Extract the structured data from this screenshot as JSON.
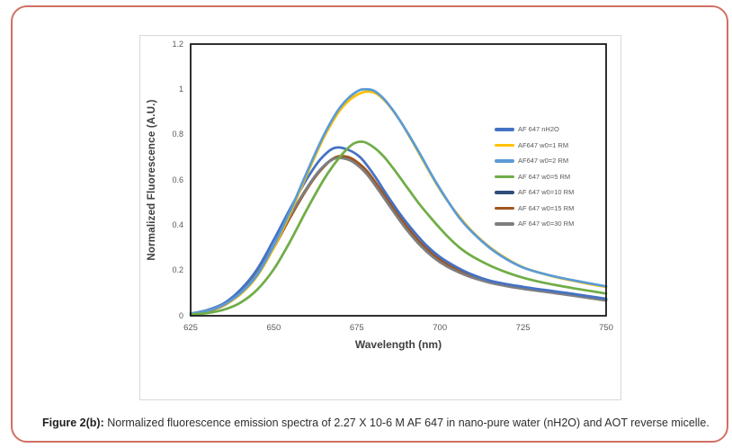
{
  "figure": {
    "caption_label": "Figure 2(b):",
    "caption_text": " Normalized fluorescence emission spectra of 2.27 X 10-6 M AF 647 in nano-pure water (nH2O) and AOT reverse micelle.",
    "border_color": "#cf7164"
  },
  "chart_data": {
    "type": "line",
    "title": "",
    "xlabel": "Wavelength (nm)",
    "ylabel": "Normalized Fluorescence (A.U.)",
    "xlim": [
      625,
      750
    ],
    "ylim": [
      0,
      1.2
    ],
    "x_ticks": [
      625,
      650,
      675,
      700,
      725,
      750
    ],
    "y_ticks": [
      0,
      0.2,
      0.4,
      0.6,
      0.8,
      1,
      1.2
    ],
    "grid": false,
    "legend_position": "inside-right",
    "plot_border_color": "#1a1a1a",
    "draw_order": [
      4,
      5,
      6,
      0,
      1,
      2,
      3
    ],
    "series": [
      {
        "name": "AF 647 nH2O",
        "color": "#4472C4",
        "points": [
          [
            625,
            0.01
          ],
          [
            630,
            0.025
          ],
          [
            635,
            0.055
          ],
          [
            640,
            0.115
          ],
          [
            645,
            0.205
          ],
          [
            650,
            0.335
          ],
          [
            655,
            0.475
          ],
          [
            660,
            0.605
          ],
          [
            664,
            0.69
          ],
          [
            668,
            0.74
          ],
          [
            672,
            0.735
          ],
          [
            676,
            0.7
          ],
          [
            680,
            0.625
          ],
          [
            684,
            0.535
          ],
          [
            688,
            0.45
          ],
          [
            692,
            0.375
          ],
          [
            696,
            0.31
          ],
          [
            700,
            0.26
          ],
          [
            705,
            0.215
          ],
          [
            710,
            0.18
          ],
          [
            715,
            0.155
          ],
          [
            720,
            0.14
          ],
          [
            725,
            0.128
          ],
          [
            730,
            0.117
          ],
          [
            735,
            0.107
          ],
          [
            740,
            0.097
          ],
          [
            745,
            0.086
          ],
          [
            750,
            0.075
          ]
        ]
      },
      {
        "name": "AF647 w0=1 RM",
        "color": "#FFC000",
        "points": [
          [
            625,
            0.01
          ],
          [
            630,
            0.022
          ],
          [
            635,
            0.048
          ],
          [
            640,
            0.095
          ],
          [
            645,
            0.175
          ],
          [
            650,
            0.3
          ],
          [
            655,
            0.455
          ],
          [
            660,
            0.625
          ],
          [
            665,
            0.785
          ],
          [
            669,
            0.888
          ],
          [
            672,
            0.942
          ],
          [
            675,
            0.975
          ],
          [
            678,
            0.99
          ],
          [
            681,
            0.98
          ],
          [
            684,
            0.94
          ],
          [
            688,
            0.862
          ],
          [
            692,
            0.762
          ],
          [
            696,
            0.658
          ],
          [
            700,
            0.558
          ],
          [
            705,
            0.453
          ],
          [
            710,
            0.368
          ],
          [
            715,
            0.303
          ],
          [
            720,
            0.253
          ],
          [
            725,
            0.214
          ],
          [
            730,
            0.19
          ],
          [
            735,
            0.17
          ],
          [
            740,
            0.155
          ],
          [
            745,
            0.14
          ],
          [
            750,
            0.128
          ]
        ]
      },
      {
        "name": "AF647 w0=2 RM",
        "color": "#5B9BD5",
        "points": [
          [
            625,
            0.01
          ],
          [
            630,
            0.022
          ],
          [
            635,
            0.05
          ],
          [
            640,
            0.1
          ],
          [
            645,
            0.18
          ],
          [
            650,
            0.31
          ],
          [
            655,
            0.465
          ],
          [
            660,
            0.635
          ],
          [
            665,
            0.795
          ],
          [
            669,
            0.9
          ],
          [
            672,
            0.955
          ],
          [
            675,
            0.99
          ],
          [
            677,
            1.0
          ],
          [
            680,
            0.995
          ],
          [
            683,
            0.96
          ],
          [
            686,
            0.905
          ],
          [
            690,
            0.815
          ],
          [
            694,
            0.715
          ],
          [
            698,
            0.61
          ],
          [
            702,
            0.515
          ],
          [
            706,
            0.43
          ],
          [
            710,
            0.365
          ],
          [
            715,
            0.3
          ],
          [
            720,
            0.25
          ],
          [
            725,
            0.213
          ],
          [
            730,
            0.19
          ],
          [
            735,
            0.172
          ],
          [
            740,
            0.157
          ],
          [
            745,
            0.143
          ],
          [
            750,
            0.13
          ]
        ]
      },
      {
        "name": "AF 647 w0=5 RM",
        "color": "#70AD47",
        "points": [
          [
            625,
            0.005
          ],
          [
            630,
            0.012
          ],
          [
            635,
            0.027
          ],
          [
            640,
            0.058
          ],
          [
            645,
            0.115
          ],
          [
            650,
            0.205
          ],
          [
            655,
            0.33
          ],
          [
            660,
            0.47
          ],
          [
            665,
            0.6
          ],
          [
            668,
            0.665
          ],
          [
            671,
            0.72
          ],
          [
            674,
            0.76
          ],
          [
            677,
            0.768
          ],
          [
            680,
            0.745
          ],
          [
            683,
            0.705
          ],
          [
            686,
            0.65
          ],
          [
            690,
            0.57
          ],
          [
            694,
            0.49
          ],
          [
            698,
            0.42
          ],
          [
            702,
            0.355
          ],
          [
            706,
            0.3
          ],
          [
            710,
            0.26
          ],
          [
            715,
            0.222
          ],
          [
            720,
            0.192
          ],
          [
            725,
            0.168
          ],
          [
            730,
            0.15
          ],
          [
            735,
            0.135
          ],
          [
            740,
            0.122
          ],
          [
            745,
            0.11
          ],
          [
            750,
            0.098
          ]
        ]
      },
      {
        "name": "AF 647 w0=10 RM",
        "color": "#2E4D7B",
        "points": [
          [
            625,
            0.008
          ],
          [
            630,
            0.021
          ],
          [
            635,
            0.048
          ],
          [
            640,
            0.1
          ],
          [
            645,
            0.185
          ],
          [
            650,
            0.305
          ],
          [
            655,
            0.44
          ],
          [
            660,
            0.565
          ],
          [
            664,
            0.645
          ],
          [
            668,
            0.695
          ],
          [
            671,
            0.7
          ],
          [
            674,
            0.685
          ],
          [
            678,
            0.635
          ],
          [
            682,
            0.555
          ],
          [
            686,
            0.47
          ],
          [
            690,
            0.39
          ],
          [
            694,
            0.32
          ],
          [
            698,
            0.265
          ],
          [
            702,
            0.225
          ],
          [
            706,
            0.195
          ],
          [
            710,
            0.172
          ],
          [
            715,
            0.15
          ],
          [
            720,
            0.135
          ],
          [
            725,
            0.122
          ],
          [
            730,
            0.112
          ],
          [
            735,
            0.102
          ],
          [
            740,
            0.092
          ],
          [
            745,
            0.081
          ],
          [
            750,
            0.07
          ]
        ]
      },
      {
        "name": "AF 647 w0=15 RM",
        "color": "#A0551E",
        "points": [
          [
            625,
            0.008
          ],
          [
            630,
            0.02
          ],
          [
            635,
            0.046
          ],
          [
            640,
            0.097
          ],
          [
            645,
            0.18
          ],
          [
            650,
            0.3
          ],
          [
            655,
            0.435
          ],
          [
            660,
            0.56
          ],
          [
            664,
            0.64
          ],
          [
            668,
            0.695
          ],
          [
            671,
            0.705
          ],
          [
            674,
            0.69
          ],
          [
            678,
            0.64
          ],
          [
            682,
            0.56
          ],
          [
            686,
            0.475
          ],
          [
            690,
            0.395
          ],
          [
            694,
            0.325
          ],
          [
            698,
            0.27
          ],
          [
            702,
            0.228
          ],
          [
            706,
            0.198
          ],
          [
            710,
            0.174
          ],
          [
            715,
            0.152
          ],
          [
            720,
            0.137
          ],
          [
            725,
            0.124
          ],
          [
            730,
            0.113
          ],
          [
            735,
            0.103
          ],
          [
            740,
            0.093
          ],
          [
            745,
            0.082
          ],
          [
            750,
            0.072
          ]
        ]
      },
      {
        "name": "AF 647 w0=30 RM",
        "color": "#7F7F7F",
        "points": [
          [
            625,
            0.009
          ],
          [
            630,
            0.023
          ],
          [
            635,
            0.052
          ],
          [
            640,
            0.105
          ],
          [
            645,
            0.19
          ],
          [
            650,
            0.31
          ],
          [
            655,
            0.445
          ],
          [
            660,
            0.565
          ],
          [
            664,
            0.645
          ],
          [
            668,
            0.692
          ],
          [
            671,
            0.695
          ],
          [
            674,
            0.678
          ],
          [
            678,
            0.625
          ],
          [
            682,
            0.545
          ],
          [
            686,
            0.46
          ],
          [
            690,
            0.38
          ],
          [
            694,
            0.312
          ],
          [
            698,
            0.258
          ],
          [
            702,
            0.218
          ],
          [
            706,
            0.19
          ],
          [
            710,
            0.167
          ],
          [
            715,
            0.146
          ],
          [
            720,
            0.131
          ],
          [
            725,
            0.119
          ],
          [
            730,
            0.109
          ],
          [
            735,
            0.099
          ],
          [
            740,
            0.089
          ],
          [
            745,
            0.078
          ],
          [
            750,
            0.067
          ]
        ]
      }
    ]
  }
}
